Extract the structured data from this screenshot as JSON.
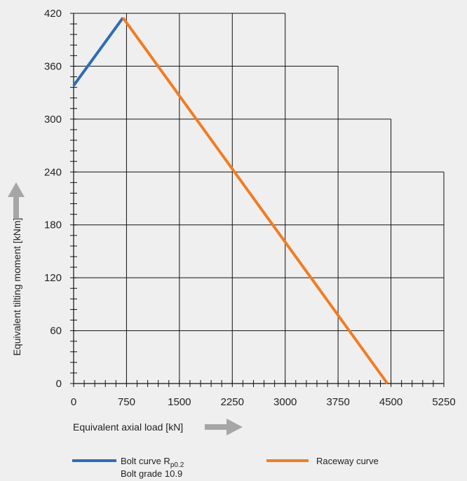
{
  "chart_data": {
    "type": "line",
    "xlabel": "Equivalent axial load [kN]",
    "ylabel": "Equivalent tilting moment [kNm]",
    "xlim": [
      0,
      5250
    ],
    "ylim": [
      0,
      420
    ],
    "x_ticks": [
      "0",
      "750",
      "1500",
      "2250",
      "3000",
      "3750",
      "4500",
      "5250"
    ],
    "y_ticks": [
      "0",
      "60",
      "120",
      "180",
      "240",
      "300",
      "360",
      "420"
    ],
    "grid": true,
    "grid_envelope": [
      {
        "x_max": 750,
        "y_max": 420
      },
      {
        "x_max": 1500,
        "y_max": 420
      },
      {
        "x_max": 2250,
        "y_max": 420
      },
      {
        "x_max": 3000,
        "y_max": 420
      },
      {
        "x_max": 3750,
        "y_max": 360
      },
      {
        "x_max": 4500,
        "y_max": 300
      },
      {
        "x_max": 5250,
        "y_max": 240
      }
    ],
    "series": [
      {
        "name": "Bolt curve Rp0.2",
        "name_main": "Bolt curve R",
        "name_sub": "p0.2",
        "name_line2": "Bolt grade 10.9",
        "color": "#2e6db4",
        "points": [
          [
            0,
            338
          ],
          [
            700,
            415
          ]
        ]
      },
      {
        "name": "Raceway curve",
        "color": "#f07d23",
        "points": [
          [
            700,
            415
          ],
          [
            4450,
            0
          ]
        ]
      }
    ],
    "legend": "bottom"
  },
  "colors": {
    "background": "#efeff0",
    "grid": "#111111",
    "arrow": "#a6a6a6"
  }
}
